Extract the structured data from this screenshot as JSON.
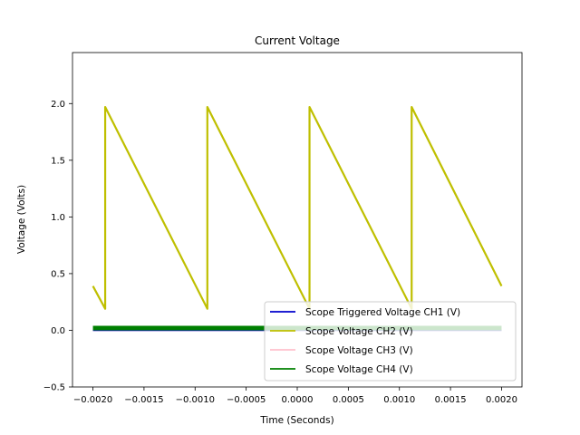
{
  "chart_data": {
    "type": "line",
    "title": "Current Voltage",
    "xlabel": "Time (Seconds)",
    "ylabel": "Voltage (Volts)",
    "xlim": [
      -0.0022,
      0.0022
    ],
    "ylim": [
      -0.5,
      2.45
    ],
    "xticks": [
      -0.002,
      -0.0015,
      -0.001,
      -0.0005,
      0.0,
      0.0005,
      0.001,
      0.0015,
      0.002
    ],
    "xtick_labels": [
      "−0.0020",
      "−0.0015",
      "−0.0010",
      "−0.0005",
      "0.0000",
      "0.0005",
      "0.0010",
      "0.0015",
      "0.0020"
    ],
    "yticks": [
      -0.5,
      0.0,
      0.5,
      1.0,
      1.5,
      2.0
    ],
    "ytick_labels": [
      "−0.5",
      "0.0",
      "0.5",
      "1.0",
      "1.5",
      "2.0"
    ],
    "grid": false,
    "legend_position": "lower-right",
    "series": [
      {
        "name": "Scope Triggered Voltage CH1 (V)",
        "color": "#0000cc",
        "x": [
          -0.002,
          0.002
        ],
        "y": [
          0.0,
          0.0
        ]
      },
      {
        "name": "Scope Voltage CH2 (V)",
        "color": "#bfbf00",
        "x": [
          -0.002,
          -0.00188,
          -0.00188,
          -0.00088,
          -0.00088,
          0.00012,
          0.00012,
          0.00112,
          0.00112,
          0.002
        ],
        "y": [
          0.39,
          0.19,
          1.97,
          0.19,
          1.97,
          0.19,
          1.97,
          0.19,
          1.97,
          0.39
        ]
      },
      {
        "name": "Scope Voltage CH3 (V)",
        "color": "#ffc0cb",
        "x": [
          -0.002,
          0.002
        ],
        "y": [
          0.0,
          0.0
        ]
      },
      {
        "name": "Scope Voltage CH4 (V)",
        "color": "#008000",
        "x": [
          -0.002,
          0.002
        ],
        "y": [
          0.02,
          0.02
        ]
      }
    ]
  }
}
